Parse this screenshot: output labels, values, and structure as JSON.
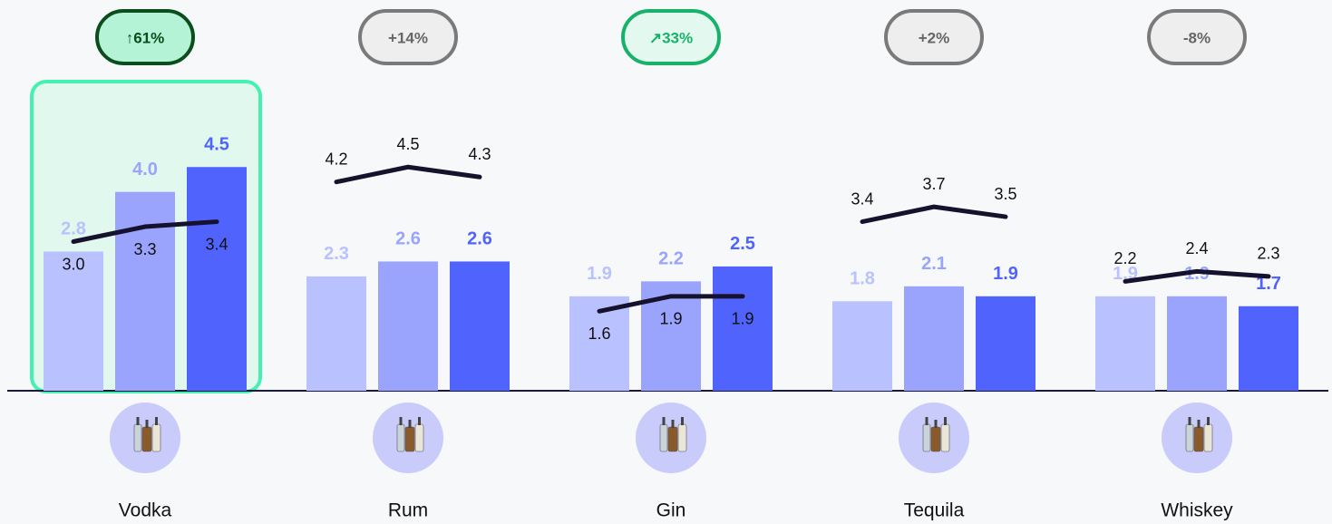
{
  "chart_data": {
    "type": "bar",
    "categories": [
      "Vodka",
      "Rum",
      "Gin",
      "Tequila",
      "Whiskey"
    ],
    "ylim": [
      0,
      6
    ],
    "highlight": 0,
    "series": [
      {
        "color": "#b9c2fe",
        "values": [
          2.8,
          2.3,
          1.9,
          1.8,
          1.9
        ]
      },
      {
        "color": "#9aa4fd",
        "values": [
          4.0,
          2.6,
          2.2,
          2.1,
          1.9
        ],
        "value_labels": [
          "4.0",
          "2.6",
          "2.2",
          "2.1",
          "1.9"
        ]
      },
      {
        "color": "#5064fd",
        "values": [
          4.5,
          2.6,
          2.5,
          1.9,
          1.7
        ]
      }
    ],
    "lines": {
      "color": "#16122e",
      "values": [
        [
          3.0,
          3.3,
          3.4
        ],
        [
          4.2,
          4.5,
          4.3
        ],
        [
          1.6,
          1.9,
          1.9
        ],
        [
          3.4,
          3.7,
          3.5
        ],
        [
          2.2,
          2.4,
          2.3
        ]
      ],
      "value_labels": [
        [
          "3.0",
          "3.3",
          "3.4"
        ],
        [
          "4.2",
          "4.5",
          "4.3"
        ],
        [
          "1.6",
          "1.9",
          "1.9"
        ],
        [
          "3.4",
          "3.7",
          "3.5"
        ],
        [
          "2.2",
          "2.4",
          "2.3"
        ]
      ]
    },
    "change": {
      "values": [
        61,
        14,
        33,
        2,
        -8
      ],
      "value_labels": [
        "↑61%",
        "+14%",
        "↗33%",
        "+2%",
        "-8%"
      ],
      "colors": [
        "#0c4d1e",
        "#7a7a7a",
        "#17b26a",
        "#7a7a7a",
        "#7a7a7a"
      ]
    }
  }
}
